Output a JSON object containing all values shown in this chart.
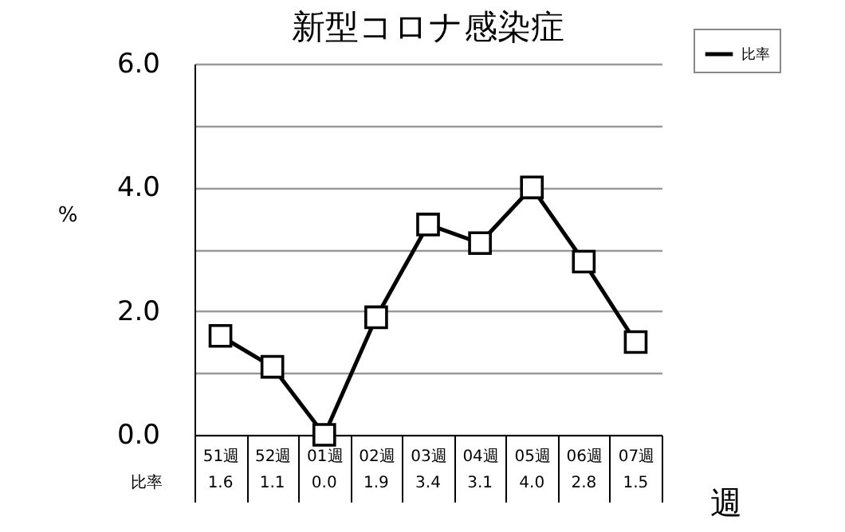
{
  "chart_data": {
    "type": "line",
    "title": "新型コロナ感染症",
    "xlabel": "週",
    "ylabel": "%",
    "categories": [
      "51週",
      "52週",
      "01週",
      "02週",
      "03週",
      "04週",
      "05週",
      "06週",
      "07週"
    ],
    "series": [
      {
        "name": "比率",
        "color": "#000000",
        "values": [
          1.6,
          1.1,
          0.0,
          1.9,
          3.4,
          3.1,
          4.0,
          2.8,
          1.5
        ],
        "value_labels": [
          "1.6",
          "1.1",
          "0.0",
          "1.9",
          "3.4",
          "3.1",
          "4.0",
          "2.8",
          "1.5"
        ]
      }
    ],
    "ylim": [
      0,
      6
    ],
    "yticks": [
      {
        "value": 0,
        "label": "0.0"
      },
      {
        "value": 1,
        "label": null
      },
      {
        "value": 2,
        "label": "2.0"
      },
      {
        "value": 3,
        "label": null
      },
      {
        "value": 4,
        "label": "4.0"
      },
      {
        "value": 5,
        "label": null
      },
      {
        "value": 6,
        "label": "6.0"
      }
    ],
    "grid": "y",
    "legend": "top right",
    "marker": "square",
    "line_style": "solid"
  }
}
